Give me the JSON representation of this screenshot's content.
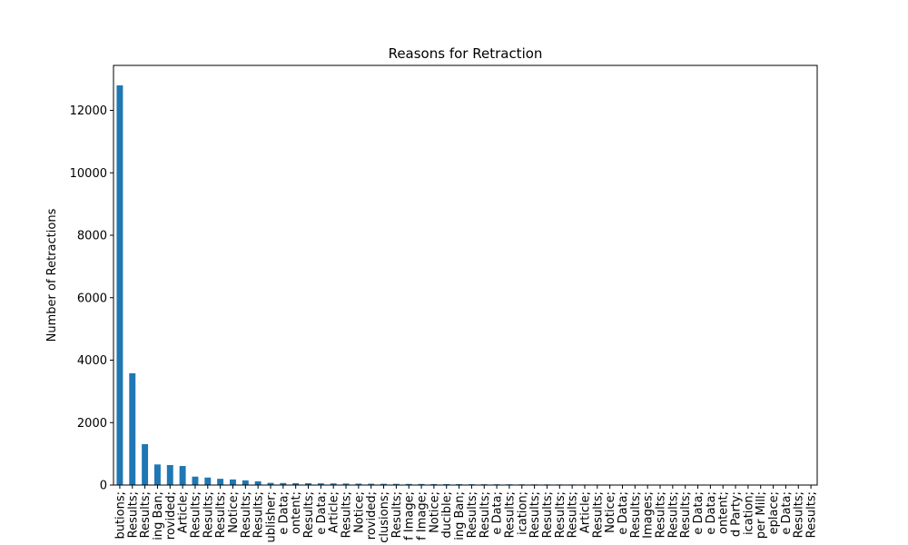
{
  "chart_data": {
    "type": "bar",
    "title": "Reasons for Retraction",
    "xlabel": "",
    "ylabel": "Number of Retractions",
    "ylim": [
      0,
      13440
    ],
    "yticks": [
      0,
      2000,
      4000,
      6000,
      8000,
      10000,
      12000
    ],
    "ytick_labels": [
      "0",
      "2000",
      "4000",
      "6000",
      "8000",
      "10000",
      "12000"
    ],
    "bar_color": "#1f77b4",
    "categories": [
      "butions;",
      "Results;",
      "Results;",
      "ing Ban;",
      "rovided;",
      "Article;",
      "Results;",
      "Results;",
      "Results;",
      "Notice;",
      "Results;",
      "Results;",
      "ublisher;",
      "e Data;",
      "ontent;",
      "Results;",
      "e Data;",
      "Article;",
      "Results;",
      "Notice;",
      "rovided;",
      "clusions;",
      "Results;",
      "f Image;",
      "f Image;",
      "Notice;",
      "ducible;",
      "ing Ban;",
      "Results;",
      "Results;",
      "e Data;",
      "Results;",
      "ication;",
      "Results;",
      "Results;",
      "Results;",
      "Results;",
      "Article;",
      "Results;",
      "Notice;",
      "e Data;",
      "Results;",
      "Images;",
      "Results;",
      "Results;",
      "Results;",
      "e Data;",
      "e Data;",
      "ontent;",
      "d Party;",
      "ication;",
      "per Mill;",
      "eplace;",
      "e Data;",
      "Results;",
      "Results;"
    ],
    "values": [
      12800,
      3580,
      1310,
      660,
      640,
      610,
      270,
      240,
      200,
      180,
      150,
      120,
      70,
      65,
      60,
      58,
      55,
      52,
      48,
      45,
      42,
      40,
      38,
      36,
      34,
      32,
      30,
      28,
      26,
      25,
      24,
      23,
      22,
      21,
      20,
      19,
      18,
      17,
      16,
      15,
      14,
      13,
      9,
      8,
      8,
      7,
      7,
      6,
      6,
      5,
      5,
      5,
      4,
      4,
      4,
      4
    ]
  }
}
